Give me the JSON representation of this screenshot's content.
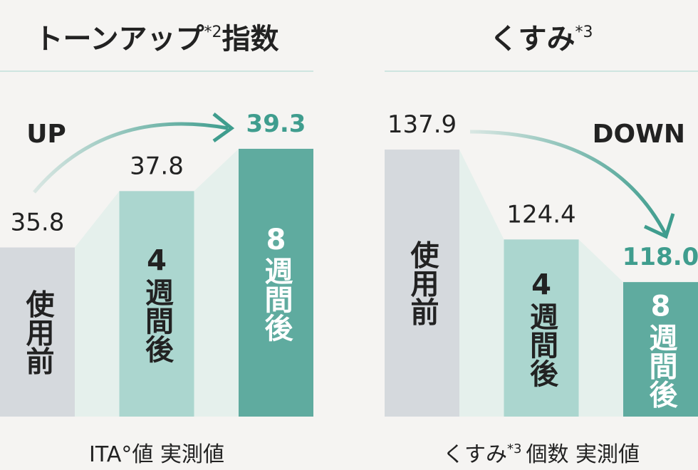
{
  "chart_data": [
    {
      "type": "bar",
      "title": "トーンアップ",
      "title_note": "*2",
      "title_suffix": "指数",
      "trend_label": "UP",
      "categories": [
        "使用前",
        "4週間後",
        "8週間後"
      ],
      "values": [
        35.8,
        37.8,
        39.3
      ],
      "colors": [
        "#d5d9dd",
        "#abd6cf",
        "#5fab9f"
      ],
      "label_colors": [
        "#222222",
        "#222222",
        "#3f9d8e"
      ],
      "ylim": [
        29.8,
        41.8
      ],
      "caption": "ITA°値 実測値"
    },
    {
      "type": "bar",
      "title": "くすみ",
      "title_note": "*3",
      "trend_label": "DOWN",
      "categories": [
        "使用前",
        "4週間後",
        "8週間後"
      ],
      "values": [
        137.9,
        124.4,
        118.0
      ],
      "value_labels": [
        "137.9",
        "124.4",
        "118.0"
      ],
      "colors": [
        "#d5d9dd",
        "#abd6cf",
        "#5fab9f"
      ],
      "label_colors": [
        "#222222",
        "#222222",
        "#3f9d8e"
      ],
      "ylim": [
        97.8,
        148.6
      ],
      "caption": "くすみ",
      "caption_note": "*3",
      "caption_suffix": "個数 実測値"
    }
  ]
}
